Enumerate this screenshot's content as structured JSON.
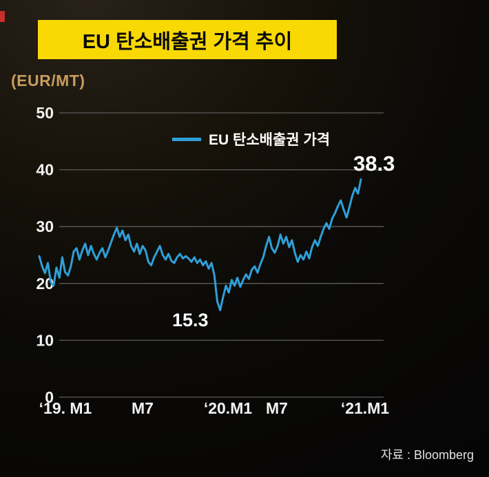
{
  "header": {
    "title": "EU 탄소배출권 가격 추이"
  },
  "footer": {
    "source": "자료 : Bloomberg"
  },
  "chart_data": {
    "type": "line",
    "title": "EU 탄소배출권 가격 추이",
    "ylabel": "(EUR/MT)",
    "ylim": [
      0,
      50
    ],
    "yticks": [
      0,
      10,
      20,
      30,
      40,
      50
    ],
    "xticks": [
      "‘19. M1",
      "M7",
      "‘20.M1",
      "M7",
      "‘21.M1"
    ],
    "grid": true,
    "legend_position": "top-center",
    "line_color": "#2f9fd8",
    "series": [
      {
        "name": "EU 탄소배출권 가격",
        "color": "#2f9fd8",
        "values": [
          24.8,
          23.0,
          21.8,
          23.6,
          20.2,
          19.6,
          22.8,
          21.0,
          24.6,
          22.0,
          21.4,
          23.0,
          25.6,
          26.2,
          24.2,
          25.8,
          27.0,
          25.0,
          26.6,
          25.2,
          24.2,
          25.4,
          26.2,
          24.6,
          25.8,
          27.2,
          28.6,
          29.8,
          28.2,
          29.3,
          27.6,
          28.6,
          26.6,
          25.6,
          27.0,
          25.2,
          26.6,
          25.8,
          23.8,
          23.2,
          24.6,
          25.6,
          26.6,
          25.0,
          24.2,
          25.2,
          24.0,
          23.6,
          24.6,
          25.2,
          24.4,
          24.8,
          24.4,
          23.8,
          24.6,
          23.6,
          24.2,
          23.2,
          23.9,
          22.6,
          23.6,
          21.4,
          16.8,
          15.3,
          17.6,
          19.6,
          18.4,
          20.6,
          19.6,
          21.0,
          19.4,
          20.6,
          21.6,
          20.8,
          22.4,
          23.0,
          21.9,
          23.4,
          24.6,
          26.6,
          28.2,
          26.2,
          25.4,
          26.6,
          28.6,
          27.0,
          28.2,
          26.4,
          27.6,
          25.4,
          23.8,
          25.0,
          24.2,
          25.6,
          24.4,
          26.4,
          27.6,
          26.6,
          28.2,
          29.6,
          30.6,
          29.6,
          31.4,
          32.4,
          33.6,
          34.6,
          33.0,
          31.6,
          33.4,
          35.4,
          36.8,
          35.8,
          38.3
        ]
      }
    ],
    "annotations": [
      {
        "label": "15.3",
        "value": 15.3,
        "point": "min"
      },
      {
        "label": "38.3",
        "value": 38.3,
        "point": "last"
      }
    ]
  }
}
